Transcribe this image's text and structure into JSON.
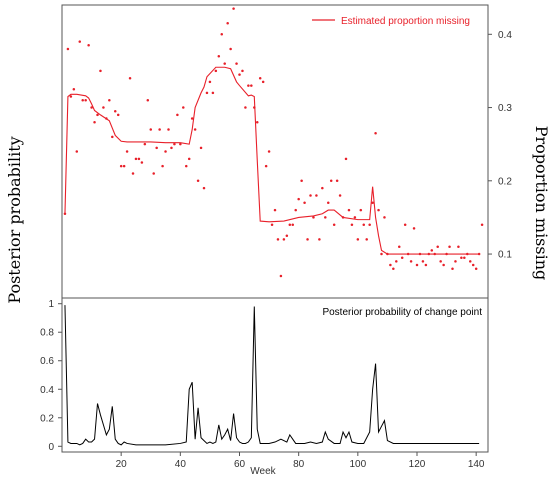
{
  "figure": {
    "left_ylabel": "Posterior probability",
    "right_ylabel": "Proportion missing",
    "xlabel": "Week"
  },
  "colors": {
    "top_series": "#e8202a",
    "bottom_series": "#000000",
    "axis": "#555555"
  },
  "chart_data": [
    {
      "type": "scatter",
      "panel": "top",
      "xlim": [
        0,
        144
      ],
      "ylim": [
        0.04,
        0.44
      ],
      "y_axis_side": "right",
      "yticks": [
        0.1,
        0.2,
        0.3,
        0.4
      ],
      "ytick_labels": [
        "0.1",
        "0.2",
        "0.3",
        "0.4"
      ],
      "legend": {
        "position": "top-right",
        "entries": [
          "Estimated proportion missing"
        ]
      },
      "series": [
        {
          "name": "Estimated proportion missing",
          "style": "line",
          "x": [
            1,
            2,
            3,
            5,
            8,
            9,
            10,
            11,
            13,
            16,
            18,
            20,
            22,
            25,
            30,
            35,
            40,
            43,
            44,
            45,
            47,
            48,
            49,
            52,
            55,
            57,
            59,
            60,
            63,
            64,
            65,
            66,
            67,
            70,
            75,
            80,
            85,
            88,
            90,
            92,
            95,
            100,
            104,
            105,
            106,
            107,
            108,
            110,
            115,
            120,
            130,
            141
          ],
          "y": [
            0.155,
            0.315,
            0.318,
            0.318,
            0.316,
            0.313,
            0.305,
            0.296,
            0.29,
            0.282,
            0.262,
            0.254,
            0.253,
            0.253,
            0.253,
            0.252,
            0.252,
            0.25,
            0.27,
            0.3,
            0.32,
            0.328,
            0.342,
            0.355,
            0.355,
            0.353,
            0.335,
            0.33,
            0.316,
            0.317,
            0.315,
            0.228,
            0.145,
            0.144,
            0.145,
            0.15,
            0.152,
            0.155,
            0.16,
            0.16,
            0.15,
            0.147,
            0.147,
            0.192,
            0.15,
            0.125,
            0.105,
            0.1,
            0.1,
            0.1,
            0.1,
            0.1
          ]
        },
        {
          "name": "observed",
          "style": "points",
          "x": [
            1,
            2,
            3,
            4,
            5,
            6,
            7,
            8,
            9,
            10,
            11,
            12,
            13,
            14,
            15,
            16,
            17,
            18,
            19,
            20,
            21,
            22,
            23,
            24,
            25,
            26,
            27,
            28,
            29,
            30,
            31,
            32,
            33,
            34,
            35,
            36,
            37,
            38,
            39,
            40,
            41,
            42,
            43,
            44,
            45,
            46,
            47,
            48,
            49,
            50,
            51,
            52,
            53,
            54,
            55,
            56,
            57,
            58,
            59,
            60,
            61,
            62,
            63,
            64,
            65,
            66,
            67,
            68,
            69,
            70,
            71,
            72,
            73,
            74,
            75,
            76,
            77,
            78,
            79,
            80,
            81,
            82,
            83,
            84,
            85,
            86,
            87,
            88,
            89,
            90,
            91,
            92,
            93,
            94,
            95,
            96,
            97,
            98,
            99,
            100,
            101,
            102,
            103,
            104,
            105,
            106,
            107,
            108,
            109,
            110,
            111,
            112,
            113,
            114,
            115,
            116,
            117,
            118,
            119,
            120,
            121,
            122,
            123,
            124,
            125,
            126,
            127,
            128,
            129,
            130,
            131,
            132,
            133,
            134,
            135,
            136,
            137,
            138,
            139,
            140,
            141,
            142
          ],
          "y": [
            0.155,
            0.38,
            0.315,
            0.325,
            0.24,
            0.39,
            0.31,
            0.31,
            0.385,
            0.3,
            0.28,
            0.29,
            0.35,
            0.3,
            0.285,
            0.31,
            0.26,
            0.295,
            0.29,
            0.22,
            0.22,
            0.24,
            0.34,
            0.21,
            0.23,
            0.23,
            0.225,
            0.25,
            0.31,
            0.27,
            0.21,
            0.245,
            0.27,
            0.22,
            0.24,
            0.27,
            0.245,
            0.25,
            0.29,
            0.25,
            0.3,
            0.22,
            0.23,
            0.285,
            0.27,
            0.2,
            0.245,
            0.19,
            0.32,
            0.335,
            0.32,
            0.35,
            0.37,
            0.4,
            0.36,
            0.415,
            0.38,
            0.435,
            0.36,
            0.345,
            0.35,
            0.3,
            0.33,
            0.33,
            0.3,
            0.28,
            0.34,
            0.335,
            0.22,
            0.24,
            0.14,
            0.16,
            0.12,
            0.07,
            0.12,
            0.125,
            0.14,
            0.14,
            0.16,
            0.175,
            0.2,
            0.17,
            0.12,
            0.18,
            0.15,
            0.18,
            0.12,
            0.19,
            0.15,
            0.17,
            0.2,
            0.14,
            0.2,
            0.18,
            0.15,
            0.23,
            0.16,
            0.14,
            0.15,
            0.12,
            0.16,
            0.14,
            0.12,
            0.14,
            0.17,
            0.265,
            0.16,
            0.1,
            0.15,
            0.1,
            0.085,
            0.08,
            0.09,
            0.11,
            0.095,
            0.14,
            0.1,
            0.09,
            0.135,
            0.085,
            0.1,
            0.09,
            0.085,
            0.1,
            0.105,
            0.1,
            0.11,
            0.09,
            0.085,
            0.1,
            0.11,
            0.08,
            0.09,
            0.11,
            0.095,
            0.095,
            0.1,
            0.09,
            0.085,
            0.08,
            0.1,
            0.14
          ]
        }
      ]
    },
    {
      "type": "line",
      "panel": "bottom",
      "xlim": [
        0,
        144
      ],
      "ylim": [
        -0.04,
        1.04
      ],
      "y_axis_side": "left",
      "xticks": [
        20,
        40,
        60,
        80,
        100,
        120,
        140
      ],
      "xtick_labels": [
        "20",
        "40",
        "60",
        "80",
        "100",
        "120",
        "140"
      ],
      "yticks": [
        0,
        0.2,
        0.4,
        0.6,
        0.8,
        1
      ],
      "ytick_labels": [
        "0",
        "0.2",
        "0.4",
        "0.6",
        "0.8",
        "1"
      ],
      "legend": {
        "position": "top-right",
        "entries": [
          "Posterior probability of change point"
        ]
      },
      "series": [
        {
          "name": "Posterior probability of change point",
          "x": [
            1,
            2,
            3,
            4,
            5,
            6,
            7,
            8,
            9,
            10,
            11,
            12,
            13,
            14,
            15,
            16,
            17,
            18,
            19,
            20,
            21,
            22,
            25,
            30,
            35,
            40,
            42,
            43,
            44,
            45,
            46,
            47,
            48,
            49,
            50,
            51,
            52,
            53,
            54,
            55,
            56,
            57,
            58,
            59,
            60,
            61,
            62,
            63,
            64,
            65,
            66,
            67,
            68,
            70,
            72,
            74,
            76,
            77,
            78,
            79,
            80,
            82,
            84,
            86,
            88,
            89,
            90,
            92,
            94,
            95,
            96,
            97,
            98,
            100,
            102,
            104,
            105,
            106,
            107,
            108,
            109,
            110,
            112,
            120,
            130,
            141
          ],
          "y": [
            0.99,
            0.03,
            0.02,
            0.02,
            0.02,
            0.01,
            0.02,
            0.05,
            0.03,
            0.03,
            0.05,
            0.3,
            0.22,
            0.15,
            0.08,
            0.12,
            0.28,
            0.05,
            0.02,
            0.01,
            0.03,
            0.02,
            0.01,
            0.01,
            0.01,
            0.02,
            0.03,
            0.4,
            0.45,
            0.05,
            0.27,
            0.06,
            0.04,
            0.02,
            0.03,
            0.02,
            0.03,
            0.15,
            0.05,
            0.08,
            0.12,
            0.04,
            0.23,
            0.06,
            0.03,
            0.02,
            0.02,
            0.03,
            0.06,
            0.98,
            0.12,
            0.02,
            0.02,
            0.02,
            0.03,
            0.05,
            0.03,
            0.08,
            0.05,
            0.02,
            0.02,
            0.02,
            0.03,
            0.02,
            0.03,
            0.1,
            0.05,
            0.02,
            0.02,
            0.1,
            0.06,
            0.1,
            0.03,
            0.02,
            0.02,
            0.1,
            0.4,
            0.58,
            0.1,
            0.14,
            0.18,
            0.04,
            0.02,
            0.02,
            0.02,
            0.02
          ]
        }
      ]
    }
  ]
}
